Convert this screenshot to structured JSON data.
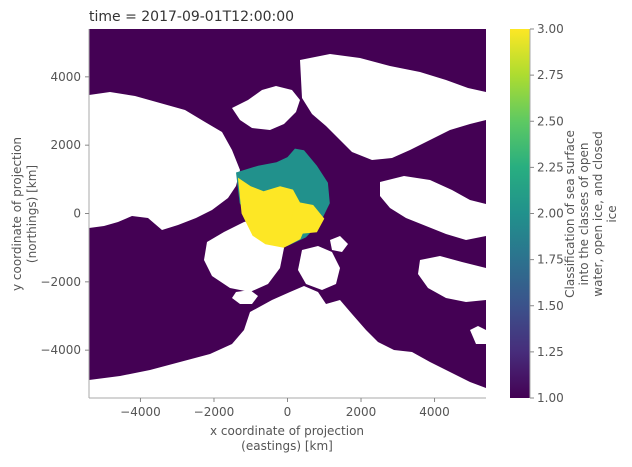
{
  "chart_data": {
    "type": "heatmap",
    "title": "time = 2017-09-01T12:00:00",
    "xlabel_line1": "x coordinate of projection",
    "xlabel_line2": "(eastings) [km]",
    "ylabel_line1": "y coordinate of projection",
    "ylabel_line2": "(northings) [km]",
    "x_ticks": [
      -4000,
      -2000,
      0,
      2000,
      4000
    ],
    "y_ticks": [
      4000,
      2000,
      0,
      -2000,
      -4000
    ],
    "x_tick_labels": [
      "−4000",
      "−2000",
      "0",
      "2000",
      "4000"
    ],
    "y_tick_labels": [
      "4000",
      "2000",
      "0",
      "−2000",
      "−4000"
    ],
    "xlim": [
      -5400,
      5400
    ],
    "ylim": [
      -5400,
      5400
    ],
    "colorbar": {
      "label_lines": [
        "Classification of sea surface",
        "into the classes of open",
        "water, open ice, and closed",
        "ice"
      ],
      "range": [
        1.0,
        3.0
      ],
      "ticks": [
        1.0,
        1.25,
        1.5,
        1.75,
        2.0,
        2.25,
        2.5,
        2.75,
        3.0
      ],
      "tick_labels": [
        "1.00",
        "1.25",
        "1.50",
        "1.75",
        "2.00",
        "2.25",
        "2.50",
        "2.75",
        "3.00"
      ],
      "colormap": "viridis"
    },
    "classes": [
      {
        "value": 1,
        "color": "#440154"
      },
      {
        "value": 2,
        "color": "#21918c"
      },
      {
        "value": 3,
        "color": "#fde725"
      }
    ],
    "land_color": "#ffffff",
    "background_value": 1,
    "regions": [
      {
        "value": 2,
        "points": [
          [
            -1400,
            1200
          ],
          [
            -800,
            1400
          ],
          [
            -300,
            1500
          ],
          [
            0,
            1650
          ],
          [
            200,
            1900
          ],
          [
            450,
            1850
          ],
          [
            800,
            1400
          ],
          [
            1100,
            900
          ],
          [
            1150,
            300
          ],
          [
            900,
            -250
          ],
          [
            500,
            -700
          ],
          [
            0,
            -950
          ],
          [
            -500,
            -850
          ],
          [
            -900,
            -400
          ],
          [
            -1300,
            300
          ]
        ]
      },
      {
        "value": 3,
        "points": [
          [
            -1350,
            1050
          ],
          [
            -1000,
            800
          ],
          [
            -650,
            650
          ],
          [
            -200,
            800
          ],
          [
            150,
            700
          ],
          [
            350,
            300
          ],
          [
            550,
            -250
          ],
          [
            350,
            -750
          ],
          [
            -100,
            -1000
          ],
          [
            -600,
            -900
          ],
          [
            -950,
            -650
          ],
          [
            -1250,
            0
          ]
        ]
      },
      {
        "value": 3,
        "points": [
          [
            200,
            350
          ],
          [
            700,
            250
          ],
          [
            1000,
            -150
          ],
          [
            800,
            -550
          ],
          [
            300,
            -600
          ],
          [
            100,
            -200
          ]
        ]
      }
    ]
  }
}
